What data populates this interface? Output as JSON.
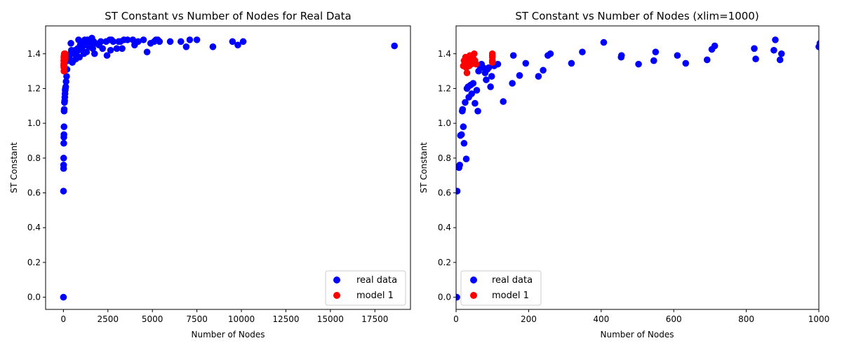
{
  "chart_data": [
    {
      "type": "scatter",
      "title": "ST Constant vs Number of Nodes for Real Data",
      "xlabel": "Number of Nodes",
      "ylabel": "ST Constant",
      "xlim": [
        -1000,
        19500
      ],
      "ylim": [
        -0.07,
        1.56
      ],
      "xticks": [
        0,
        2500,
        5000,
        7500,
        10000,
        12500,
        15000,
        17500
      ],
      "xtick_labels": [
        "0",
        "2500",
        "5000",
        "7500",
        "10000",
        "12500",
        "15000",
        "17500"
      ],
      "yticks": [
        0.0,
        0.2,
        0.4,
        0.6,
        0.8,
        1.0,
        1.2,
        1.4
      ],
      "ytick_labels": [
        "0.0",
        "0.2",
        "0.4",
        "0.6",
        "0.8",
        "1.0",
        "1.2",
        "1.4"
      ],
      "grid": false,
      "legend_position": "bottom-right",
      "series": [
        {
          "name": "real data",
          "color": "#0000ff",
          "points": [
            [
              2,
              0.0
            ],
            [
              5,
              0.61
            ],
            [
              10,
              0.74
            ],
            [
              12,
              0.76
            ],
            [
              15,
              0.8
            ],
            [
              20,
              0.885
            ],
            [
              25,
              0.92
            ],
            [
              30,
              0.935
            ],
            [
              35,
              0.98
            ],
            [
              40,
              1.07
            ],
            [
              45,
              1.08
            ],
            [
              60,
              1.12
            ],
            [
              70,
              1.13
            ],
            [
              80,
              1.15
            ],
            [
              90,
              1.17
            ],
            [
              100,
              1.19
            ],
            [
              110,
              1.2
            ],
            [
              130,
              1.21
            ],
            [
              150,
              1.24
            ],
            [
              180,
              1.27
            ],
            [
              200,
              1.31
            ],
            [
              250,
              1.36
            ],
            [
              300,
              1.38
            ],
            [
              350,
              1.39
            ],
            [
              400,
              1.4
            ],
            [
              420,
              1.46
            ],
            [
              450,
              1.42
            ],
            [
              500,
              1.35
            ],
            [
              550,
              1.36
            ],
            [
              600,
              1.4
            ],
            [
              650,
              1.42
            ],
            [
              700,
              1.37
            ],
            [
              750,
              1.41
            ],
            [
              800,
              1.43
            ],
            [
              850,
              1.48
            ],
            [
              900,
              1.38
            ],
            [
              950,
              1.45
            ],
            [
              1000,
              1.46
            ],
            [
              1050,
              1.42
            ],
            [
              1100,
              1.47
            ],
            [
              1150,
              1.4
            ],
            [
              1200,
              1.48
            ],
            [
              1250,
              1.45
            ],
            [
              1300,
              1.41
            ],
            [
              1350,
              1.48
            ],
            [
              1400,
              1.47
            ],
            [
              1450,
              1.44
            ],
            [
              1500,
              1.48
            ],
            [
              1550,
              1.46
            ],
            [
              1600,
              1.49
            ],
            [
              1650,
              1.43
            ],
            [
              1700,
              1.47
            ],
            [
              1750,
              1.4
            ],
            [
              1800,
              1.46
            ],
            [
              2000,
              1.45
            ],
            [
              2100,
              1.47
            ],
            [
              2200,
              1.43
            ],
            [
              2400,
              1.47
            ],
            [
              2450,
              1.39
            ],
            [
              2600,
              1.48
            ],
            [
              2650,
              1.42
            ],
            [
              2700,
              1.48
            ],
            [
              2800,
              1.47
            ],
            [
              3000,
              1.43
            ],
            [
              3100,
              1.47
            ],
            [
              3200,
              1.47
            ],
            [
              3300,
              1.43
            ],
            [
              3400,
              1.48
            ],
            [
              3600,
              1.48
            ],
            [
              3900,
              1.48
            ],
            [
              4000,
              1.45
            ],
            [
              4200,
              1.47
            ],
            [
              4500,
              1.48
            ],
            [
              4700,
              1.41
            ],
            [
              4900,
              1.46
            ],
            [
              5100,
              1.47
            ],
            [
              5200,
              1.48
            ],
            [
              5300,
              1.48
            ],
            [
              5400,
              1.47
            ],
            [
              6000,
              1.47
            ],
            [
              6600,
              1.47
            ],
            [
              6900,
              1.44
            ],
            [
              7100,
              1.48
            ],
            [
              7500,
              1.48
            ],
            [
              8400,
              1.44
            ],
            [
              9500,
              1.47
            ],
            [
              9800,
              1.45
            ],
            [
              10100,
              1.47
            ],
            [
              18600,
              1.445
            ]
          ]
        },
        {
          "name": "model 1",
          "color": "#ff0000",
          "points": [
            [
              20,
              1.33
            ],
            [
              22,
              1.36
            ],
            [
              24,
              1.34
            ],
            [
              26,
              1.38
            ],
            [
              28,
              1.32
            ],
            [
              30,
              1.3
            ],
            [
              32,
              1.35
            ],
            [
              34,
              1.37
            ],
            [
              36,
              1.33
            ],
            [
              38,
              1.39
            ],
            [
              40,
              1.36
            ],
            [
              42,
              1.34
            ],
            [
              44,
              1.38
            ],
            [
              46,
              1.35
            ],
            [
              48,
              1.37
            ],
            [
              50,
              1.4
            ],
            [
              55,
              1.38
            ],
            [
              60,
              1.36
            ],
            [
              65,
              1.39
            ],
            [
              70,
              1.37
            ],
            [
              75,
              1.4
            ],
            [
              80,
              1.38
            ],
            [
              85,
              1.37
            ],
            [
              90,
              1.39
            ],
            [
              95,
              1.4
            ],
            [
              100,
              1.38
            ]
          ]
        }
      ]
    },
    {
      "type": "scatter",
      "title": "ST Constant vs Number of Nodes (xlim=1000)",
      "xlabel": "Number of Nodes",
      "ylabel": "ST Constant",
      "xlim": [
        0,
        1000
      ],
      "ylim": [
        -0.07,
        1.56
      ],
      "xticks": [
        0,
        200,
        400,
        600,
        800,
        1000
      ],
      "xtick_labels": [
        "0",
        "200",
        "400",
        "600",
        "800",
        "1000"
      ],
      "yticks": [
        0.0,
        0.2,
        0.4,
        0.6,
        0.8,
        1.0,
        1.2,
        1.4
      ],
      "ytick_labels": [
        "0.0",
        "0.2",
        "0.4",
        "0.6",
        "0.8",
        "1.0",
        "1.2",
        "1.4"
      ],
      "grid": false,
      "legend_position": "bottom-left",
      "series": [
        {
          "name": "real data",
          "color": "#0000ff",
          "points": [
            [
              2,
              0.0
            ],
            [
              3,
              0.61
            ],
            [
              8,
              0.745
            ],
            [
              10,
              0.76
            ],
            [
              12,
              0.93
            ],
            [
              15,
              0.935
            ],
            [
              17,
              1.07
            ],
            [
              18,
              1.08
            ],
            [
              20,
              0.98
            ],
            [
              22,
              0.885
            ],
            [
              25,
              1.12
            ],
            [
              28,
              0.795
            ],
            [
              30,
              1.2
            ],
            [
              33,
              1.21
            ],
            [
              35,
              1.15
            ],
            [
              40,
              1.22
            ],
            [
              43,
              1.17
            ],
            [
              47,
              1.23
            ],
            [
              52,
              1.115
            ],
            [
              57,
              1.19
            ],
            [
              60,
              1.07
            ],
            [
              62,
              1.3
            ],
            [
              66,
              1.33
            ],
            [
              70,
              1.34
            ],
            [
              75,
              1.32
            ],
            [
              80,
              1.29
            ],
            [
              83,
              1.25
            ],
            [
              86,
              1.31
            ],
            [
              90,
              1.32
            ],
            [
              95,
              1.21
            ],
            [
              98,
              1.27
            ],
            [
              100,
              1.36
            ],
            [
              105,
              1.33
            ],
            [
              115,
              1.34
            ],
            [
              130,
              1.125
            ],
            [
              155,
              1.23
            ],
            [
              158,
              1.39
            ],
            [
              175,
              1.275
            ],
            [
              192,
              1.345
            ],
            [
              227,
              1.27
            ],
            [
              240,
              1.305
            ],
            [
              253,
              1.39
            ],
            [
              260,
              1.4
            ],
            [
              318,
              1.345
            ],
            [
              348,
              1.41
            ],
            [
              407,
              1.465
            ],
            [
              455,
              1.38
            ],
            [
              456,
              1.39
            ],
            [
              503,
              1.34
            ],
            [
              545,
              1.36
            ],
            [
              550,
              1.41
            ],
            [
              610,
              1.39
            ],
            [
              633,
              1.345
            ],
            [
              692,
              1.365
            ],
            [
              705,
              1.425
            ],
            [
              713,
              1.445
            ],
            [
              822,
              1.43
            ],
            [
              826,
              1.37
            ],
            [
              876,
              1.42
            ],
            [
              880,
              1.48
            ],
            [
              893,
              1.365
            ],
            [
              897,
              1.4
            ],
            [
              1000,
              1.44
            ],
            [
              1003,
              1.46
            ]
          ]
        },
        {
          "name": "model 1",
          "color": "#ff0000",
          "points": [
            [
              20,
              1.33
            ],
            [
              22,
              1.36
            ],
            [
              24,
              1.34
            ],
            [
              26,
              1.38
            ],
            [
              28,
              1.32
            ],
            [
              30,
              1.29
            ],
            [
              32,
              1.35
            ],
            [
              34,
              1.37
            ],
            [
              36,
              1.33
            ],
            [
              38,
              1.39
            ],
            [
              40,
              1.36
            ],
            [
              42,
              1.34
            ],
            [
              44,
              1.38
            ],
            [
              46,
              1.35
            ],
            [
              48,
              1.37
            ],
            [
              50,
              1.4
            ],
            [
              52,
              1.36
            ],
            [
              55,
              1.34
            ],
            [
              100,
              1.38
            ],
            [
              100,
              1.4
            ],
            [
              100,
              1.36
            ],
            [
              100,
              1.39
            ],
            [
              100,
              1.35
            ]
          ]
        }
      ]
    }
  ]
}
